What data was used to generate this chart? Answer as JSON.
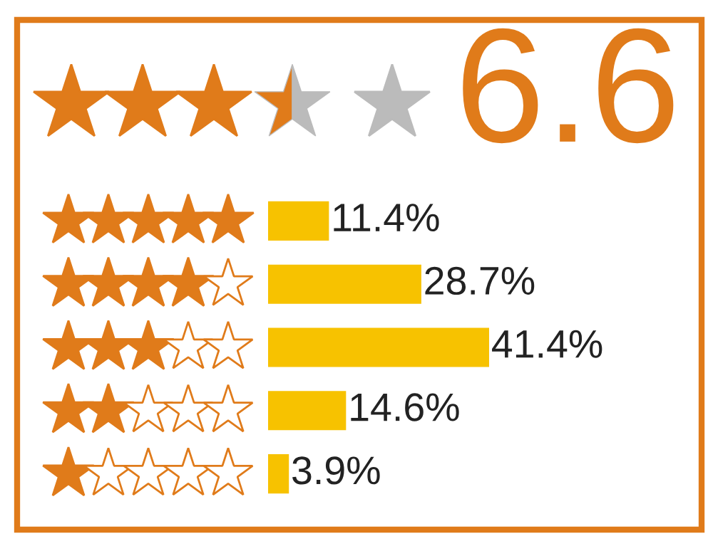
{
  "chart_data": {
    "type": "bar",
    "orientation": "horizontal",
    "title": "6.6",
    "categories": [
      null,
      null,
      null,
      null,
      null
    ],
    "values": [
      11.4,
      28.7,
      41.4,
      14.6,
      3.9
    ],
    "value_labels": [
      "11.4%",
      "28.7%",
      "41.4%",
      "14.6%",
      "3.9%"
    ],
    "color": "#f7c200",
    "tick_labels": false,
    "grid": false,
    "legend": false
  }
}
